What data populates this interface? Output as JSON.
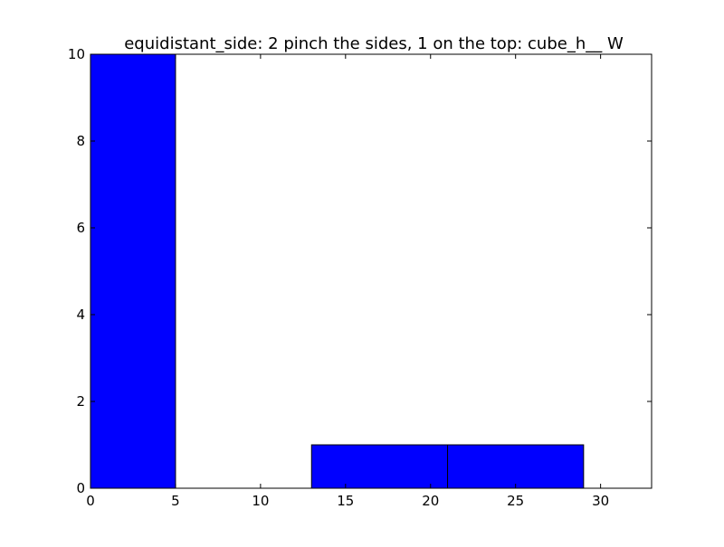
{
  "chart_data": {
    "type": "bar",
    "title": "equidistant_side: 2 pinch the sides, 1 on the top: cube_h__ W",
    "xlabel": "",
    "ylabel": "",
    "xlim": [
      0,
      33
    ],
    "ylim": [
      0,
      10
    ],
    "x_ticks": [
      0,
      5,
      10,
      15,
      20,
      25,
      30
    ],
    "y_ticks": [
      0,
      2,
      4,
      6,
      8,
      10
    ],
    "grid": false,
    "legend": "none",
    "bar_color": "#0000ff",
    "bars": [
      {
        "x_start": 0,
        "x_end": 5,
        "value": 10
      },
      {
        "x_start": 13,
        "x_end": 21,
        "value": 1
      },
      {
        "x_start": 21,
        "x_end": 29,
        "value": 1
      }
    ]
  }
}
